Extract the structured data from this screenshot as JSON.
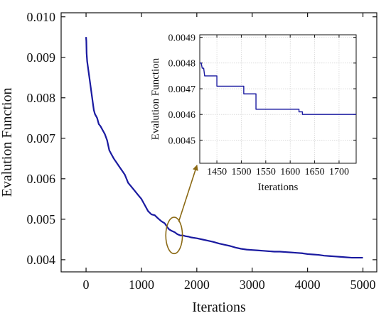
{
  "chart_data": [
    {
      "type": "line",
      "role": "main",
      "xlabel": "Iterations",
      "ylabel": "Evalution Function",
      "xlim": [
        -450,
        5250
      ],
      "ylim": [
        0.0037,
        0.0101
      ],
      "xticks": [
        0,
        1000,
        2000,
        3000,
        4000,
        5000
      ],
      "yticks": [
        0.004,
        0.005,
        0.006,
        0.007,
        0.008,
        0.009,
        0.01
      ],
      "ytick_labels": [
        "0.004",
        "0.005",
        "0.006",
        "0.007",
        "0.008",
        "0.009",
        "0.010"
      ],
      "grid": false,
      "legend": "none",
      "line_color": "#1a1aa0",
      "annotation": {
        "type": "ellipse-with-arrow",
        "center": [
          1590,
          0.0046
        ],
        "rx_data": 150,
        "ry_data": 0.00045,
        "color": "#8b6914",
        "points_to": "inset"
      },
      "series": [
        {
          "x": [
            0,
            5,
            10,
            20,
            30,
            40,
            50,
            60,
            80,
            100,
            120,
            140,
            160,
            180,
            200,
            230,
            260,
            300,
            340,
            380,
            420,
            460,
            500,
            550,
            600,
            650,
            700,
            760,
            820,
            880,
            940,
            1000,
            1060,
            1120,
            1180,
            1240,
            1300,
            1360,
            1420,
            1470,
            1500,
            1550,
            1600,
            1650,
            1700,
            1750,
            1800,
            1850,
            1900,
            2000,
            2100,
            2200,
            2300,
            2400,
            2500,
            2600,
            2700,
            2800,
            2900,
            3000,
            3100,
            3200,
            3300,
            3400,
            3500,
            3600,
            3700,
            3800,
            3900,
            4000,
            4100,
            4200,
            4300,
            4400,
            4500,
            4600,
            4700,
            4800,
            4900,
            5000
          ],
          "y": [
            0.0095,
            0.0094,
            0.0091,
            0.0089,
            0.0088,
            0.0087,
            0.0086,
            0.0085,
            0.0083,
            0.0081,
            0.0079,
            0.0077,
            0.0076,
            0.00755,
            0.0075,
            0.00735,
            0.0073,
            0.0072,
            0.0071,
            0.00695,
            0.0067,
            0.0066,
            0.0065,
            0.0064,
            0.0063,
            0.0062,
            0.0061,
            0.0059,
            0.0058,
            0.0057,
            0.0056,
            0.0055,
            0.00535,
            0.0052,
            0.00512,
            0.0051,
            0.00502,
            0.00495,
            0.0049,
            0.0048,
            0.00475,
            0.00471,
            0.00468,
            0.00463,
            0.0046,
            0.0046,
            0.00458,
            0.00457,
            0.00455,
            0.00453,
            0.0045,
            0.00447,
            0.00444,
            0.0044,
            0.00437,
            0.00434,
            0.0043,
            0.00427,
            0.00425,
            0.00424,
            0.00423,
            0.00422,
            0.00421,
            0.0042,
            0.0042,
            0.00419,
            0.00418,
            0.00417,
            0.00416,
            0.00414,
            0.00413,
            0.00412,
            0.0041,
            0.00409,
            0.00408,
            0.00407,
            0.00406,
            0.00405,
            0.00405,
            0.00405
          ]
        }
      ]
    },
    {
      "type": "line",
      "role": "inset",
      "xlabel": "Iterations",
      "ylabel": "Evalution Function",
      "xlim": [
        1415,
        1735
      ],
      "ylim": [
        0.00441,
        0.00491
      ],
      "xticks": [
        1450,
        1500,
        1550,
        1600,
        1650,
        1700
      ],
      "yticks": [
        0.0045,
        0.0046,
        0.0047,
        0.0048,
        0.0049
      ],
      "ytick_labels": [
        "0.0045",
        "0.0046",
        "0.0047",
        "0.0048",
        "0.0049"
      ],
      "grid": true,
      "legend": "none",
      "line_color": "#1a1aa0",
      "series": [
        {
          "x": [
            1415,
            1418,
            1420,
            1423,
            1425,
            1435,
            1435,
            1450,
            1450,
            1505,
            1505,
            1530,
            1530,
            1618,
            1618,
            1625,
            1625,
            1735
          ],
          "y": [
            0.0048,
            0.0048,
            0.00478,
            0.00478,
            0.00475,
            0.00475,
            0.00475,
            0.00475,
            0.00471,
            0.00471,
            0.00468,
            0.00468,
            0.00462,
            0.00462,
            0.00461,
            0.00461,
            0.0046,
            0.0046
          ]
        }
      ]
    }
  ]
}
